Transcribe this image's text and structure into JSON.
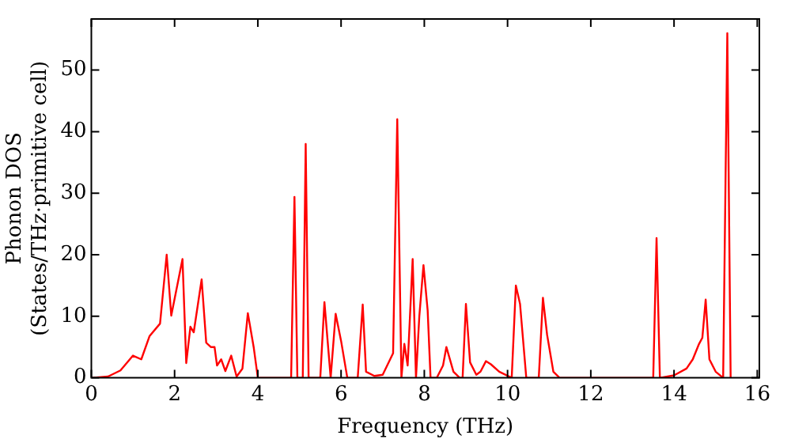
{
  "chart_data": {
    "type": "line",
    "xlabel": "Frequency (THz)",
    "ylabel": "Phonon DOS\n(States/THz·primitive cell)",
    "x": [
      0,
      0.4,
      0.7,
      1.0,
      1.2,
      1.4,
      1.65,
      1.81,
      1.92,
      2.19,
      2.28,
      2.38,
      2.46,
      2.65,
      2.76,
      2.87,
      2.96,
      3.02,
      3.12,
      3.22,
      3.36,
      3.49,
      3.63,
      3.76,
      3.9,
      4.0,
      4.8,
      4.88,
      4.95,
      5.08,
      5.15,
      5.22,
      5.5,
      5.6,
      5.75,
      5.87,
      6.0,
      6.15,
      6.4,
      6.52,
      6.6,
      6.8,
      7.0,
      7.25,
      7.35,
      7.45,
      7.52,
      7.6,
      7.72,
      7.8,
      7.88,
      7.98,
      8.08,
      8.15,
      8.3,
      8.45,
      8.53,
      8.7,
      8.85,
      8.92,
      9.0,
      9.1,
      9.25,
      9.35,
      9.48,
      9.6,
      9.8,
      10.1,
      10.2,
      10.3,
      10.45,
      10.75,
      10.85,
      10.95,
      11.1,
      11.25,
      13.5,
      13.58,
      13.66,
      14.0,
      14.3,
      14.45,
      14.6,
      14.68,
      14.76,
      14.85,
      15.0,
      15.18,
      15.28,
      15.36
    ],
    "series": [
      {
        "color": "#ff0000",
        "values": [
          0,
          0.2,
          1.2,
          3.6,
          3,
          6.8,
          8.8,
          20,
          10.1,
          19.3,
          2.4,
          8.3,
          7.4,
          16,
          5.7,
          5,
          5,
          2,
          3,
          1.1,
          3.6,
          0.2,
          1.5,
          10.5,
          5,
          0,
          0,
          29.4,
          0,
          0,
          38,
          0,
          0,
          12.3,
          0,
          10.4,
          6,
          0,
          0,
          11.9,
          1,
          0.3,
          0.5,
          4,
          42,
          0,
          5.5,
          2,
          19.3,
          0,
          10,
          18.3,
          11,
          0,
          0,
          2,
          5,
          1,
          0,
          0,
          12,
          2.5,
          0.5,
          1,
          2.7,
          2.2,
          1,
          0,
          15,
          12,
          0,
          0,
          13,
          7,
          1,
          0,
          0,
          22.7,
          0,
          0.4,
          1.5,
          3,
          5.5,
          6.5,
          12.7,
          3,
          1,
          0,
          56,
          0
        ]
      }
    ],
    "xlim": [
      0,
      16.05
    ],
    "ylim": [
      0,
      58.3
    ],
    "xticks": [
      0,
      2,
      4,
      6,
      8,
      10,
      12,
      14,
      16
    ],
    "yticks": [
      0,
      10,
      20,
      30,
      40,
      50
    ],
    "grid": false,
    "legend": false,
    "marker": "none",
    "line_style": "solid"
  }
}
